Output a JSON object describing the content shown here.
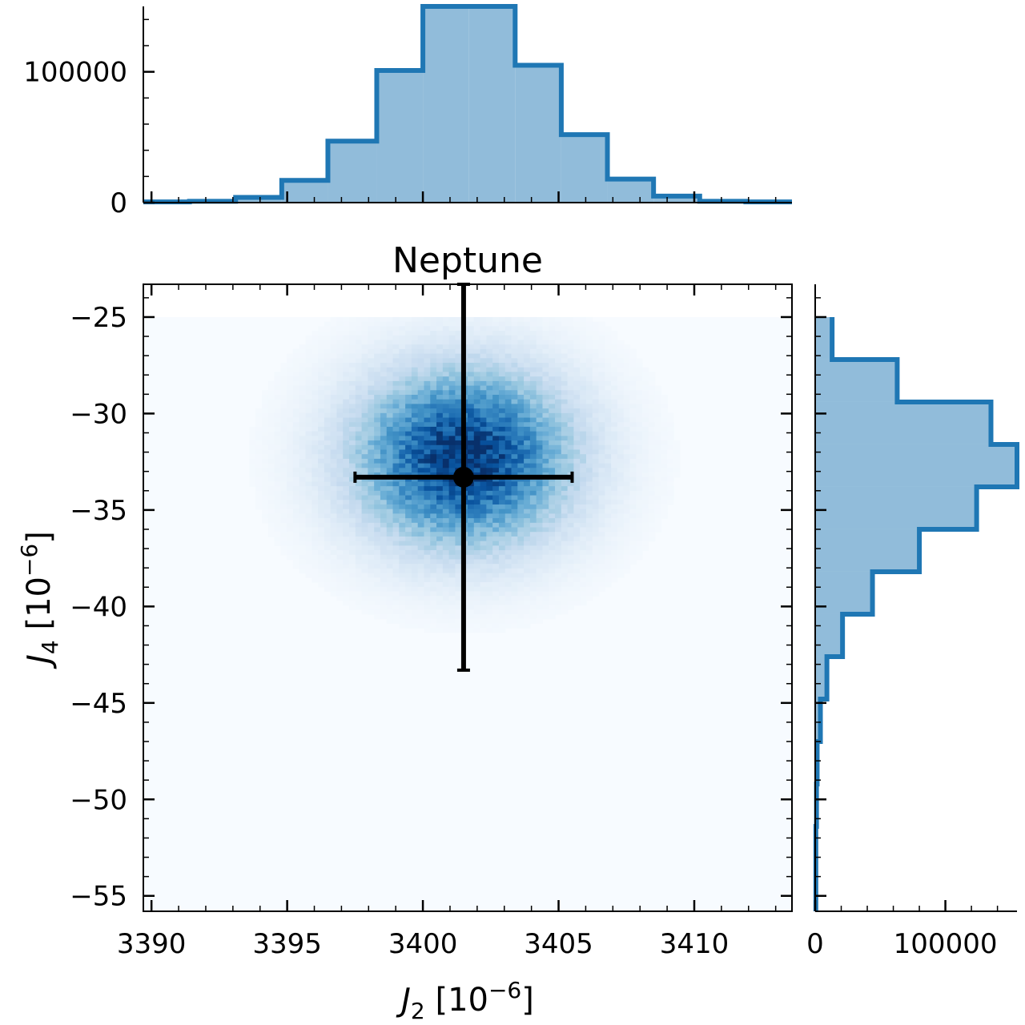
{
  "chart_data": [
    {
      "type": "heatmap",
      "title": "Neptune",
      "xlabel": {
        "main": "J",
        "sub": "2",
        "unit": " [10",
        "exp": "−6",
        "close": "]"
      },
      "ylabel": {
        "main": "J",
        "sub": "4",
        "unit": " [10",
        "exp": "−6",
        "close": "]"
      },
      "xlim": [
        3389.7,
        3413.6
      ],
      "ylim": [
        -55.8,
        -23.3
      ],
      "xticks": [
        3390,
        3395,
        3400,
        3405,
        3410
      ],
      "xtick_labels": [
        "3390",
        "3395",
        "3400",
        "3405",
        "3410"
      ],
      "yticks": [
        -25,
        -30,
        -35,
        -40,
        -45,
        -50,
        -55
      ],
      "ytick_labels": [
        "−25",
        "−30",
        "−35",
        "−40",
        "−45",
        "−50",
        "−55"
      ],
      "density": {
        "x_range": [
          3389.7,
          3413.6
        ],
        "y_range": [
          -55.8,
          -25.0
        ],
        "center": [
          3401.5,
          -32.3
        ],
        "sigma": [
          2.6,
          3.0
        ],
        "colormap": "Blues"
      },
      "point": {
        "x": 3401.5,
        "y": -33.3,
        "xerr": [
          4.0,
          4.0
        ],
        "yerr": [
          10.0,
          10.0
        ]
      },
      "colors": {
        "marker": "#000000",
        "background": "#f7fbff",
        "dense": "#08306b"
      }
    },
    {
      "type": "bar",
      "orientation": "vertical",
      "histtype": "step-filled",
      "xlim": [
        3389.7,
        3413.6
      ],
      "ylim": [
        0,
        150000
      ],
      "yticks": [
        0,
        100000
      ],
      "ytick_labels": [
        "0",
        "100000"
      ],
      "bin_edges": [
        3389.7,
        3391.4,
        3393.1,
        3394.8,
        3396.5,
        3398.3,
        3400.0,
        3401.7,
        3403.4,
        3405.1,
        3406.8,
        3408.5,
        3410.2,
        3411.9,
        3413.6
      ],
      "counts": [
        500,
        1000,
        4000,
        17000,
        47000,
        101000,
        150000,
        150000,
        105000,
        52000,
        18000,
        5000,
        1000,
        500
      ],
      "colors": {
        "edge": "#1f77b4",
        "fill": "#91bcda"
      }
    },
    {
      "type": "bar",
      "orientation": "horizontal",
      "histtype": "step-filled",
      "xlim": [
        0,
        155000
      ],
      "ylim": [
        -55.8,
        -23.3
      ],
      "xticks": [
        0,
        100000
      ],
      "xtick_labels": [
        "0",
        "100000"
      ],
      "bin_edges": [
        -25.0,
        -27.2,
        -29.4,
        -31.6,
        -33.8,
        -36.0,
        -38.2,
        -40.4,
        -42.6,
        -44.8,
        -47.0,
        -49.2,
        -51.4,
        -53.6,
        -55.8
      ],
      "counts": [
        13000,
        63000,
        135000,
        155000,
        124000,
        80000,
        44000,
        21000,
        9000,
        4000,
        1500,
        1000,
        500,
        500
      ],
      "colors": {
        "edge": "#1f77b4",
        "fill": "#91bcda"
      }
    }
  ]
}
